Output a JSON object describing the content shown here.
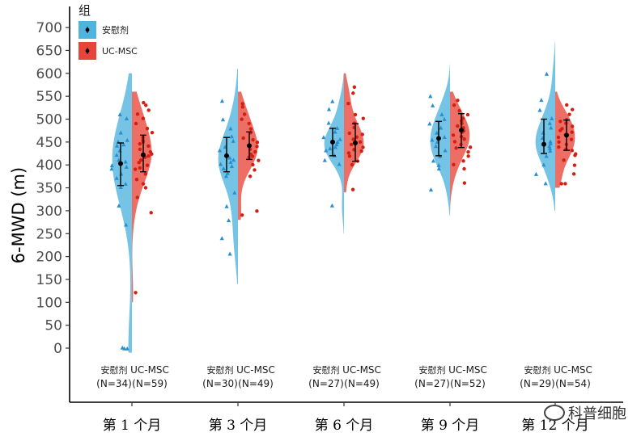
{
  "chart_data": {
    "type": "violin",
    "ylabel": "6-MWD (m)",
    "ylim": [
      -120,
      720
    ],
    "yticks": [
      0,
      50,
      100,
      150,
      200,
      250,
      300,
      350,
      400,
      450,
      500,
      550,
      600,
      650,
      700
    ],
    "legend": {
      "title": "组",
      "placement": "top-left",
      "entries": [
        {
          "name": "安慰剂",
          "color": "#4fb3de"
        },
        {
          "name": "UC-MSC",
          "color": "#e8453a"
        }
      ]
    },
    "groups": [
      {
        "label": "第 1 个月",
        "placebo": {
          "label": "安慰剂",
          "n": "(N=34)",
          "mean": 403,
          "lo": 355,
          "hi": 448,
          "range": [
            -10,
            600
          ],
          "points": [
            510,
            500,
            470,
            455,
            450,
            445,
            440,
            430,
            420,
            410,
            405,
            400,
            395,
            390,
            380,
            370,
            360,
            350,
            310,
            270,
            0,
            0,
            0
          ]
        },
        "ucmsc": {
          "label": "UC-MSC",
          "n": "(N=59)",
          "mean": 422,
          "lo": 385,
          "hi": 465,
          "range": [
            100,
            560
          ],
          "points": [
            535,
            530,
            520,
            510,
            500,
            490,
            480,
            470,
            460,
            455,
            450,
            445,
            440,
            435,
            430,
            425,
            420,
            415,
            410,
            405,
            400,
            395,
            390,
            380,
            370,
            360,
            350,
            330,
            295,
            120
          ]
        }
      },
      {
        "label": "第 3 个月",
        "placebo": {
          "label": "安慰剂",
          "n": "(N=30)",
          "mean": 420,
          "lo": 385,
          "hi": 460,
          "range": [
            140,
            610
          ],
          "points": [
            540,
            500,
            480,
            460,
            450,
            440,
            430,
            420,
            415,
            410,
            405,
            400,
            395,
            390,
            380,
            375,
            340,
            310,
            280,
            240,
            205
          ]
        },
        "ucmsc": {
          "label": "UC-MSC",
          "n": "(N=49)",
          "mean": 442,
          "lo": 412,
          "hi": 472,
          "range": [
            280,
            560
          ],
          "points": [
            535,
            525,
            510,
            500,
            490,
            480,
            470,
            460,
            455,
            450,
            445,
            440,
            435,
            430,
            425,
            420,
            415,
            410,
            400,
            390,
            375,
            300,
            290
          ]
        }
      },
      {
        "label": "第 6 个月",
        "placebo": {
          "label": "安慰剂",
          "n": "(N=27)",
          "mean": 450,
          "lo": 420,
          "hi": 480,
          "range": [
            250,
            600
          ],
          "points": [
            540,
            520,
            490,
            480,
            470,
            460,
            455,
            450,
            445,
            440,
            435,
            430,
            420,
            410,
            400,
            310
          ]
        },
        "ucmsc": {
          "label": "UC-MSC",
          "n": "(N=49)",
          "mean": 448,
          "lo": 408,
          "hi": 490,
          "range": [
            340,
            600
          ],
          "points": [
            570,
            555,
            535,
            510,
            500,
            490,
            480,
            470,
            465,
            460,
            455,
            450,
            445,
            440,
            435,
            430,
            425,
            420,
            410,
            400,
            345
          ]
        }
      },
      {
        "label": "第 9 个月",
        "placebo": {
          "label": "安慰剂",
          "n": "(N=27)",
          "mean": 458,
          "lo": 420,
          "hi": 495,
          "range": [
            290,
            620
          ],
          "points": [
            550,
            530,
            510,
            500,
            490,
            480,
            470,
            460,
            455,
            450,
            440,
            430,
            420,
            410,
            400,
            390,
            345
          ]
        },
        "ucmsc": {
          "label": "UC-MSC",
          "n": "(N=52)",
          "mean": 476,
          "lo": 438,
          "hi": 512,
          "range": [
            290,
            560
          ],
          "points": [
            540,
            530,
            520,
            510,
            500,
            495,
            490,
            485,
            480,
            475,
            470,
            465,
            460,
            455,
            450,
            445,
            440,
            435,
            430,
            420,
            410,
            400,
            390,
            360
          ]
        }
      },
      {
        "label": "第 12 个月",
        "placebo": {
          "label": "安慰剂",
          "n": "(N=29)",
          "mean": 445,
          "lo": 425,
          "hi": 500,
          "range": [
            300,
            670
          ],
          "points": [
            600,
            540,
            520,
            500,
            490,
            480,
            470,
            460,
            450,
            445,
            440,
            435,
            430,
            420,
            400,
            380,
            360
          ]
        },
        "ucmsc": {
          "label": "UC-MSC",
          "n": "(N=54)",
          "mean": 465,
          "lo": 432,
          "hi": 498,
          "range": [
            350,
            560
          ],
          "points": [
            530,
            520,
            510,
            500,
            495,
            490,
            485,
            480,
            475,
            470,
            465,
            460,
            455,
            450,
            445,
            440,
            435,
            430,
            425,
            420,
            410,
            400,
            380,
            360,
            360
          ]
        }
      }
    ]
  },
  "watermark": {
    "text": "科普细胞"
  }
}
